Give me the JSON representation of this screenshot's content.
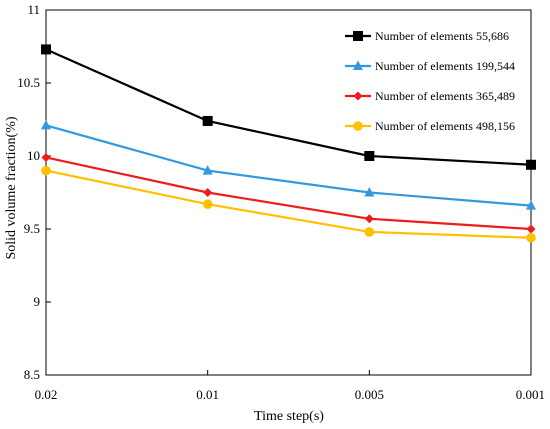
{
  "chart_data": {
    "type": "line",
    "title": "",
    "xlabel": "Time step(s)",
    "ylabel": "Solid volume fraction(%)",
    "categories": [
      "0.02",
      "0.01",
      "0.005",
      "0.001"
    ],
    "ylim": [
      8.5,
      11
    ],
    "yticks": [
      "8.5",
      "9",
      "9.5",
      "10",
      "10.5",
      "11"
    ],
    "grid": false,
    "legend_position": "top-right",
    "series": [
      {
        "name": "Number of elements 55,686",
        "values": [
          10.73,
          10.24,
          10.0,
          9.94
        ],
        "color": "#000000",
        "marker": "square"
      },
      {
        "name": "Number of elements 199,544",
        "values": [
          10.21,
          9.9,
          9.75,
          9.66
        ],
        "color": "#3399DD",
        "marker": "triangle"
      },
      {
        "name": "Number of elements 365,489",
        "values": [
          9.99,
          9.75,
          9.57,
          9.5
        ],
        "color": "#EE1C1C",
        "marker": "diamond"
      },
      {
        "name": "Number of elements 498,156",
        "values": [
          9.9,
          9.67,
          9.48,
          9.44
        ],
        "color": "#FFC000",
        "marker": "circle"
      }
    ]
  }
}
